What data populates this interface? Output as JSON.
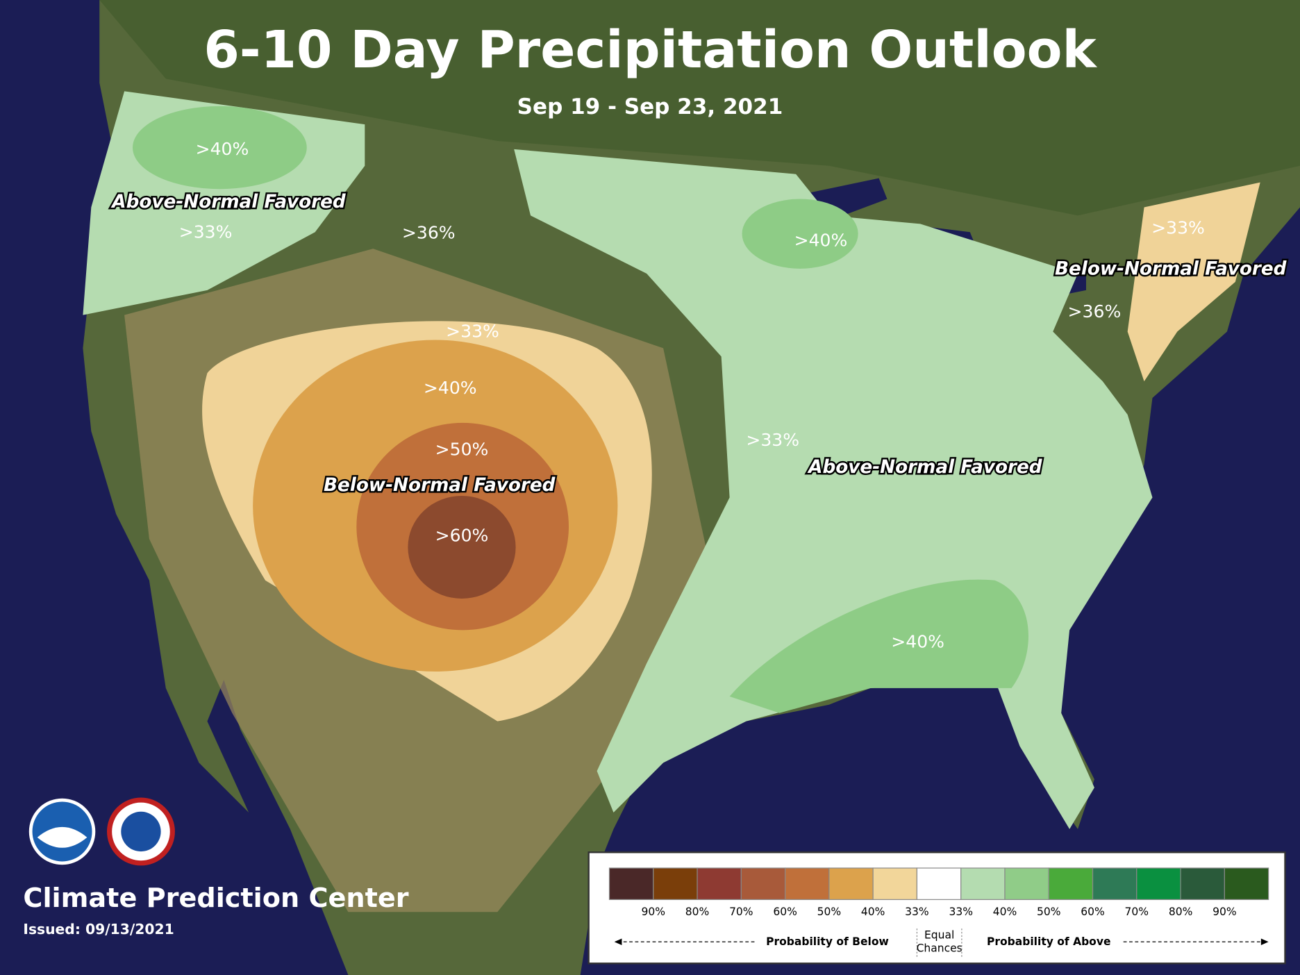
{
  "title": "6-10 Day Precipitation Outlook",
  "subtitle": "Sep 19 - Sep 23, 2021",
  "region_labels": [
    "Above-Normal Favored",
    "Below-Normal Favored",
    "Below-Normal Favored",
    "Above-Normal Favored"
  ],
  "probability_labels": [
    ">40%",
    ">33%",
    ">36%",
    ">33%",
    ">40%",
    ">50%",
    ">60%",
    ">33%",
    ">40%",
    ">40%",
    ">33%",
    ">36%"
  ],
  "legend": {
    "tick_labels": [
      "90%",
      "80%",
      "70%",
      "60%",
      "50%",
      "40%",
      "33%",
      "33%",
      "40%",
      "50%",
      "60%",
      "70%",
      "80%",
      "90%"
    ],
    "below_caption": "Probability of Below",
    "equal": [
      "Equal",
      "Chances"
    ],
    "above_caption": "Probability of Above"
  },
  "footer": {
    "org": "Climate Prediction Center",
    "issued": "Issued: 09/13/2021"
  }
}
